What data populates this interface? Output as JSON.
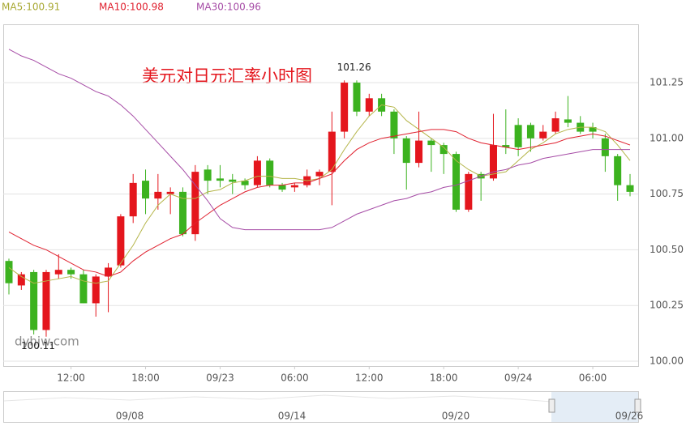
{
  "chart_data": {
    "type": "candlestick",
    "title": "美元对日元汇率小时图",
    "ma_labels": [
      {
        "text": "MA5:100.91",
        "color": "#a8a832"
      },
      {
        "text": "MA10:100.98",
        "color": "#e0212f"
      },
      {
        "text": "MA30:100.96",
        "color": "#a64ca6"
      }
    ],
    "watermark": "dyhjw.com",
    "annotations": [
      {
        "text": "101.26",
        "index": 27,
        "value": 101.26
      },
      {
        "text": "100.11",
        "index": 3,
        "value": 100.11
      }
    ],
    "categories": [
      null,
      null,
      null,
      null,
      null,
      "12:00",
      null,
      null,
      null,
      null,
      null,
      "18:00",
      null,
      null,
      null,
      null,
      null,
      "09/23",
      null,
      null,
      null,
      null,
      null,
      "06:00",
      null,
      null,
      null,
      null,
      null,
      "12:00",
      null,
      null,
      null,
      null,
      null,
      "18:00",
      null,
      null,
      null,
      null,
      null,
      "09/24",
      null,
      null,
      null,
      null,
      null,
      "06:00",
      null,
      null,
      null
    ],
    "open": [
      100.45,
      100.34,
      100.4,
      100.14,
      100.39,
      100.41,
      100.39,
      100.26,
      100.38,
      100.43,
      100.65,
      100.81,
      100.73,
      100.75,
      100.76,
      100.57,
      100.86,
      100.82,
      100.815,
      100.81,
      100.79,
      100.9,
      100.79,
      100.78,
      100.79,
      100.83,
      100.85,
      101.03,
      101.25,
      101.12,
      101.18,
      101.12,
      101.0,
      100.89,
      100.99,
      100.97,
      100.93,
      100.68,
      100.84,
      100.82,
      100.97,
      101.06,
      101.06,
      101.0,
      101.03,
      101.085,
      101.07,
      101.05,
      101.0,
      100.92,
      100.79
    ],
    "high": [
      100.46,
      100.4,
      100.41,
      100.41,
      100.48,
      100.42,
      100.41,
      100.39,
      100.44,
      100.66,
      100.84,
      100.86,
      100.84,
      100.78,
      100.78,
      100.88,
      100.88,
      100.88,
      100.84,
      100.82,
      100.92,
      100.91,
      100.8,
      100.8,
      100.86,
      100.86,
      101.12,
      101.26,
      101.26,
      101.2,
      101.2,
      101.13,
      101.01,
      101.12,
      101.0,
      100.98,
      100.94,
      100.85,
      100.85,
      101.11,
      101.13,
      101.09,
      101.07,
      101.06,
      101.12,
      101.19,
      101.1,
      101.07,
      101.02,
      100.93,
      100.84
    ],
    "low": [
      100.3,
      100.32,
      100.12,
      100.11,
      100.37,
      100.37,
      100.26,
      100.2,
      100.22,
      100.42,
      100.62,
      100.66,
      100.68,
      100.66,
      100.56,
      100.54,
      100.75,
      100.78,
      100.75,
      100.77,
      100.78,
      100.78,
      100.76,
      100.76,
      100.78,
      100.79,
      100.7,
      101.0,
      101.1,
      101.1,
      101.1,
      100.93,
      100.77,
      100.87,
      100.85,
      100.84,
      100.67,
      100.67,
      100.72,
      100.81,
      100.93,
      100.92,
      100.94,
      100.99,
      101.02,
      101.05,
      101.02,
      101.0,
      100.85,
      100.72,
      100.74
    ],
    "close": [
      100.35,
      100.39,
      100.14,
      100.4,
      100.41,
      100.39,
      100.26,
      100.38,
      100.42,
      100.65,
      100.8,
      100.73,
      100.76,
      100.76,
      100.57,
      100.85,
      100.81,
      100.81,
      100.805,
      100.79,
      100.9,
      100.79,
      100.77,
      100.79,
      100.83,
      100.85,
      101.03,
      101.25,
      101.12,
      101.18,
      101.12,
      101.0,
      100.89,
      100.99,
      100.97,
      100.93,
      100.68,
      100.84,
      100.82,
      100.97,
      100.96,
      100.96,
      101.0,
      101.03,
      101.09,
      101.07,
      101.03,
      101.03,
      100.92,
      100.79,
      100.76
    ],
    "up_color": "#e4161d",
    "down_color": "#3cb21f",
    "series": [
      {
        "name": "MA5",
        "color": "#b5b54a",
        "values": [
          100.42,
          100.38,
          100.35,
          100.36,
          100.37,
          100.38,
          100.36,
          100.35,
          100.36,
          100.44,
          100.52,
          100.62,
          100.7,
          100.75,
          100.73,
          100.73,
          100.76,
          100.77,
          100.8,
          100.81,
          100.83,
          100.83,
          100.82,
          100.82,
          100.81,
          100.82,
          100.86,
          100.95,
          101.03,
          101.1,
          101.15,
          101.14,
          101.08,
          101.04,
          101.0,
          100.96,
          100.9,
          100.86,
          100.83,
          100.84,
          100.85,
          100.9,
          100.95,
          100.98,
          101.02,
          101.04,
          101.05,
          101.05,
          101.03,
          100.97,
          100.9
        ]
      },
      {
        "name": "MA10",
        "color": "#e0212f",
        "values": [
          100.58,
          100.55,
          100.52,
          100.5,
          100.47,
          100.44,
          100.41,
          100.4,
          100.38,
          100.4,
          100.45,
          100.49,
          100.52,
          100.55,
          100.57,
          100.62,
          100.66,
          100.7,
          100.73,
          100.76,
          100.78,
          100.79,
          100.79,
          100.8,
          100.8,
          100.82,
          100.84,
          100.9,
          100.95,
          100.98,
          101.0,
          101.01,
          101.02,
          101.03,
          101.04,
          101.04,
          101.03,
          101.0,
          100.98,
          100.97,
          100.96,
          100.95,
          100.96,
          100.97,
          100.98,
          101.0,
          101.01,
          101.02,
          101.01,
          100.99,
          100.97
        ]
      },
      {
        "name": "MA30",
        "color": "#a64ca6",
        "values": [
          101.4,
          101.37,
          101.35,
          101.32,
          101.29,
          101.27,
          101.24,
          101.21,
          101.19,
          101.15,
          101.1,
          101.04,
          100.98,
          100.92,
          100.86,
          100.79,
          100.72,
          100.64,
          100.6,
          100.59,
          100.59,
          100.59,
          100.59,
          100.59,
          100.59,
          100.59,
          100.6,
          100.63,
          100.66,
          100.68,
          100.7,
          100.72,
          100.73,
          100.75,
          100.76,
          100.78,
          100.79,
          100.81,
          100.83,
          100.85,
          100.86,
          100.88,
          100.89,
          100.91,
          100.92,
          100.93,
          100.94,
          100.95,
          100.95,
          100.95,
          100.95
        ]
      }
    ],
    "ylim": [
      100.0,
      101.51
    ],
    "yticks": [
      {
        "value": 100.0,
        "label": "100.00"
      },
      {
        "value": 100.25,
        "label": "100.25"
      },
      {
        "value": 100.5,
        "label": "100.50"
      },
      {
        "value": 100.75,
        "label": "100.75"
      },
      {
        "value": 101.0,
        "label": "101.00"
      },
      {
        "value": 101.25,
        "label": "101.25"
      }
    ],
    "grid": true,
    "navigator_labels": [
      "09/08",
      "09/14",
      "09/20",
      "09/26"
    ]
  }
}
